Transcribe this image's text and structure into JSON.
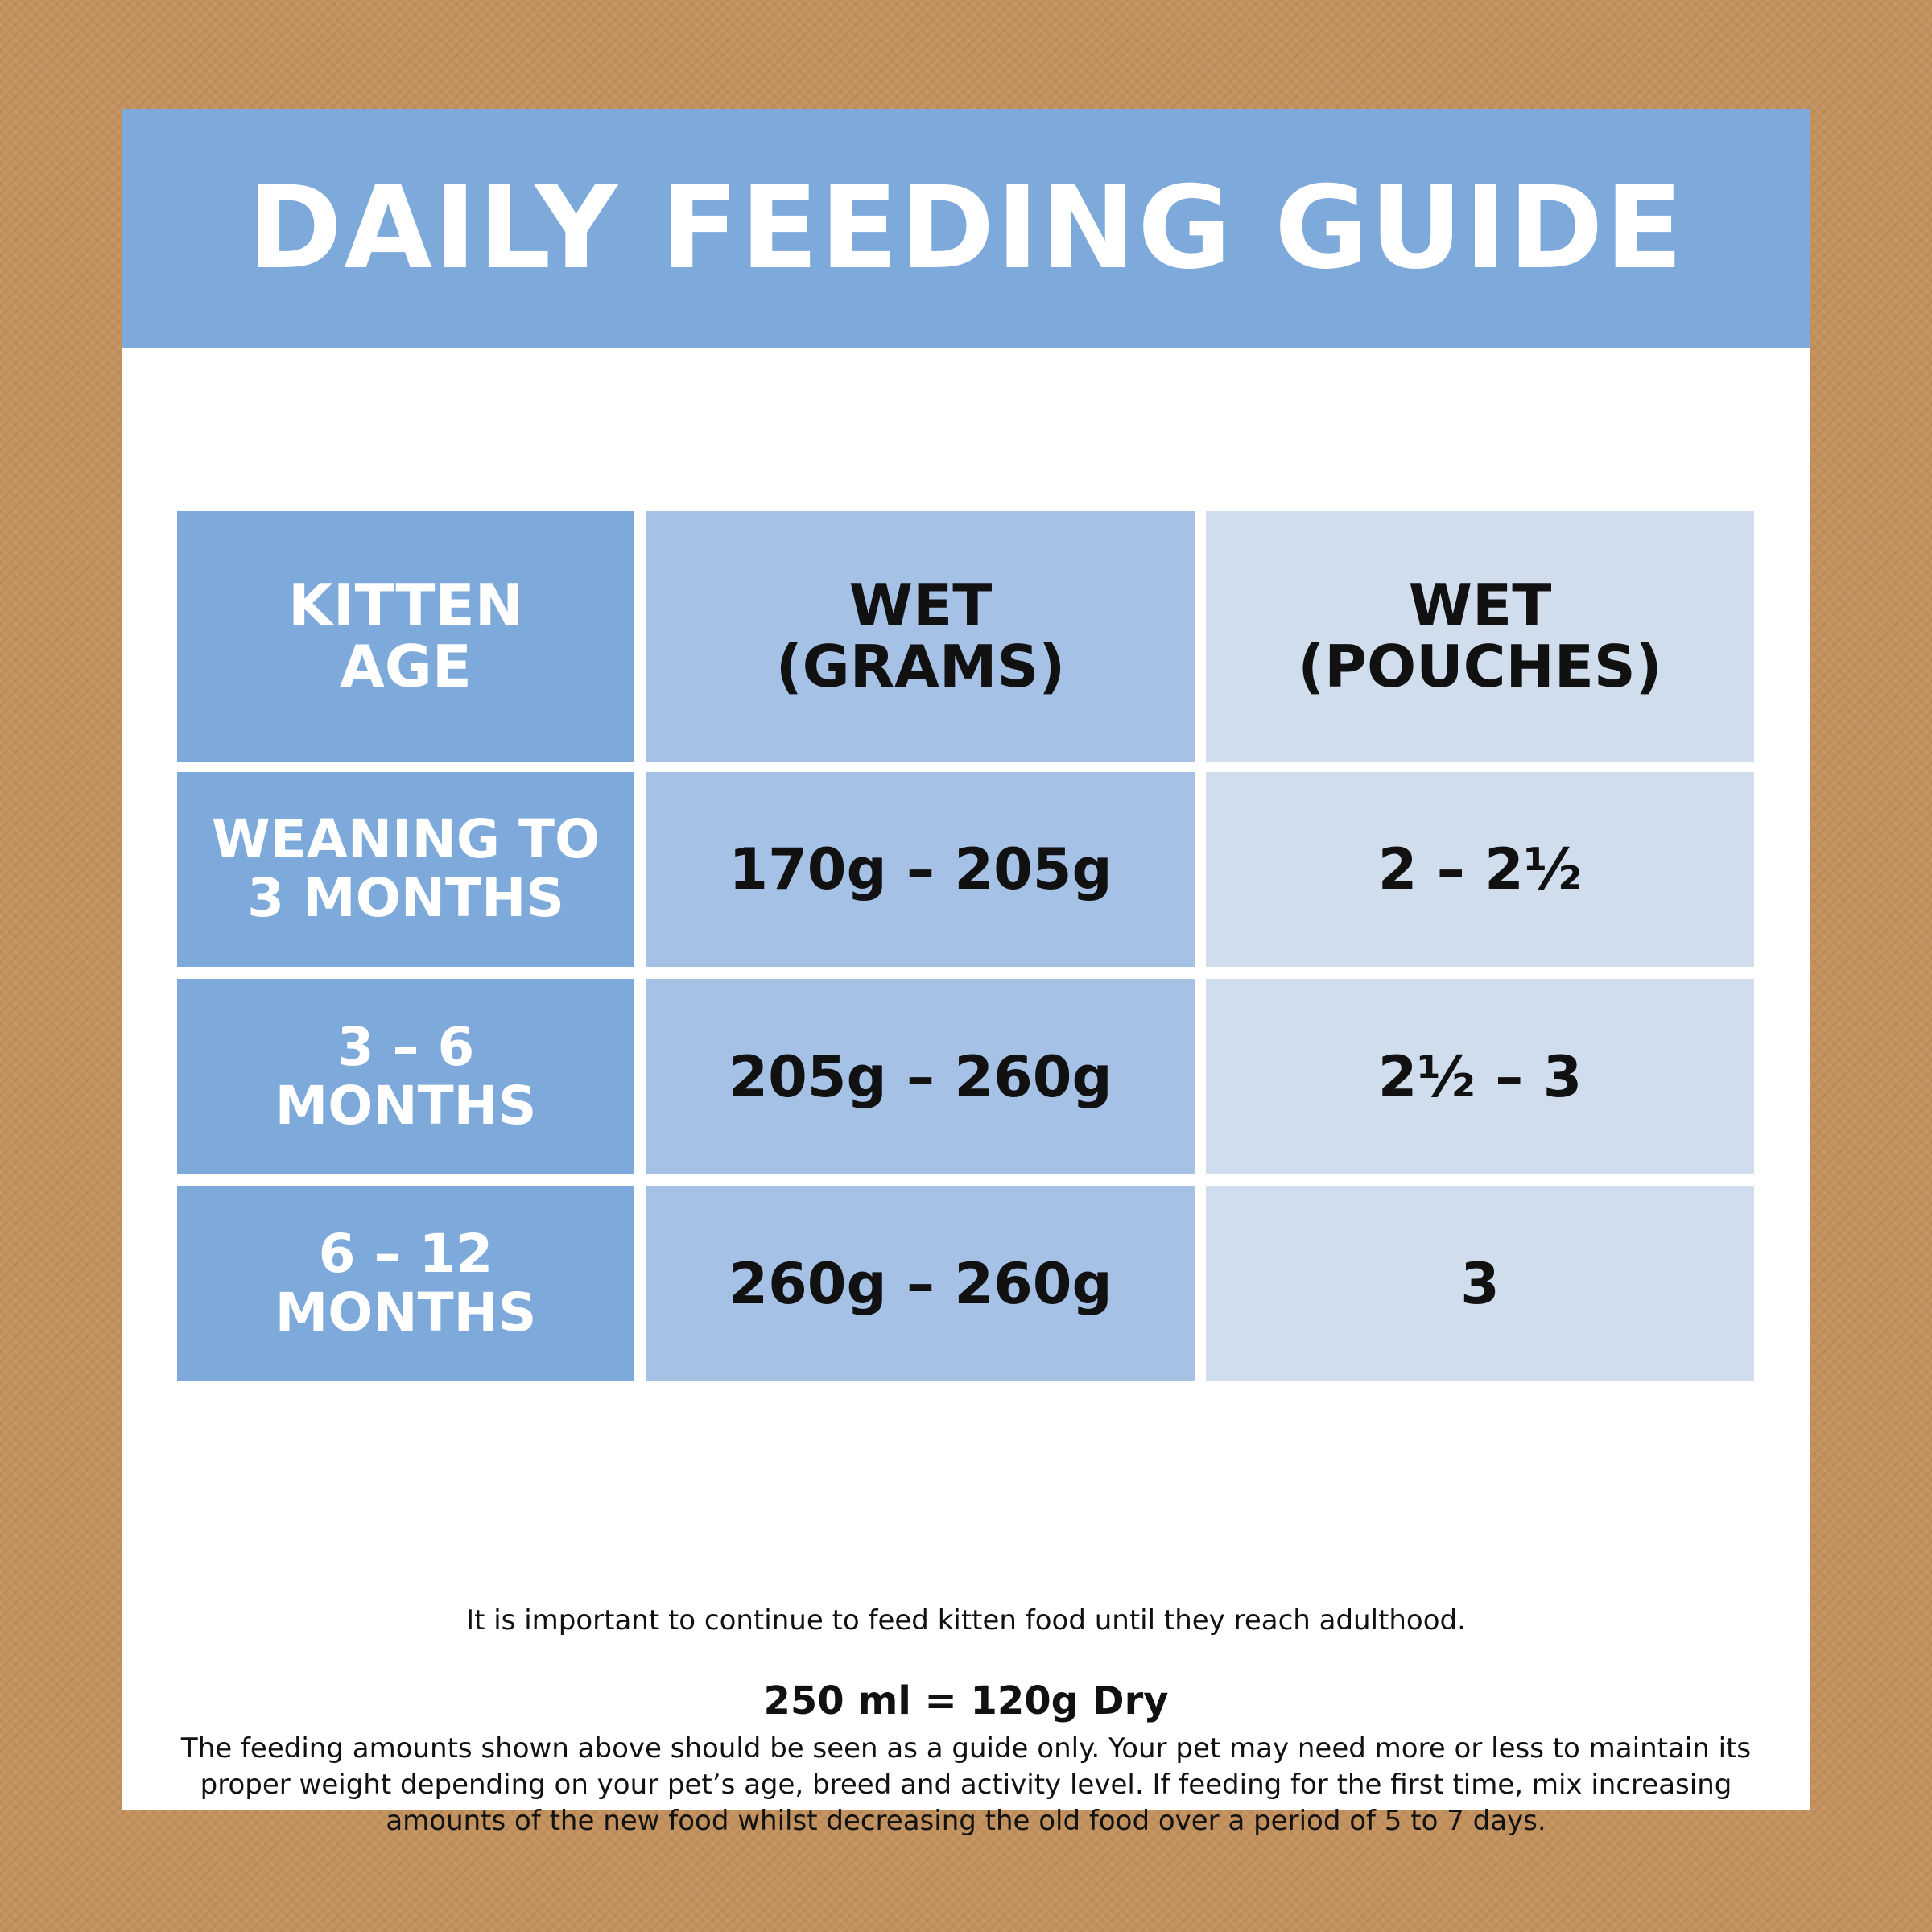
{
  "title": "DAILY FEEDING GUIDE",
  "table": {
    "headers": {
      "age": "KITTEN AGE",
      "grams": "WET (GRAMS)",
      "pouches": "WET (POUCHES)"
    },
    "rows": [
      {
        "age": "WEANING TO 3 MONTHS",
        "grams": "170g – 205g",
        "pouches": "2 – 2½"
      },
      {
        "age": "3 – 6 MONTHS",
        "grams": "205g – 260g",
        "pouches": "2½ – 3"
      },
      {
        "age": "6 – 12 MONTHS",
        "grams": "260g – 260g",
        "pouches": "3"
      }
    ]
  },
  "notes": {
    "adulthood": "It is important to continue to feed kitten food until they reach adulthood.",
    "ratio": "250 ml = 120g Dry",
    "guide": "The feeding amounts shown above should be seen as a guide only. Your pet may need more or less to maintain its proper weight depending on your pet’s age, breed and activity level. If feeding for the first time, mix increasing amounts of the new food whilst decreasing the old food over a period of 5 to 7 days."
  },
  "colors": {
    "background": "#c2915d",
    "banner": "#7eaadb",
    "age_column": "#7eaadb",
    "grams_column": "#a6c1e6",
    "pouches_column": "#cfdded"
  }
}
